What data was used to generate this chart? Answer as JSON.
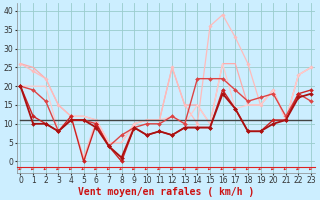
{
  "title": "Vent moyen/en rafales ( km/h )",
  "background_color": "#cceeff",
  "grid_color": "#99cccc",
  "x_ticks": [
    0,
    1,
    2,
    3,
    4,
    5,
    6,
    7,
    8,
    9,
    10,
    11,
    12,
    13,
    14,
    15,
    16,
    17,
    18,
    19,
    20,
    21,
    22,
    23
  ],
  "y_ticks": [
    0,
    5,
    10,
    15,
    20,
    25,
    30,
    35,
    40
  ],
  "ylim": [
    -3,
    42
  ],
  "xlim": [
    -0.3,
    23.3
  ],
  "series": [
    {
      "y": [
        26,
        25,
        22,
        15,
        12,
        12,
        11,
        5,
        5,
        10,
        11,
        11,
        25,
        15,
        15,
        10,
        26,
        26,
        15,
        15,
        19,
        11,
        23,
        25
      ],
      "color": "#ffaaaa",
      "lw": 0.9,
      "marker": null,
      "zorder": 2
    },
    {
      "y": [
        26,
        24,
        22,
        15,
        12,
        1,
        11,
        4,
        1,
        10,
        11,
        11,
        25,
        15,
        10,
        36,
        39,
        33,
        26,
        15,
        19,
        11,
        23,
        25
      ],
      "color": "#ffbbbb",
      "lw": 0.9,
      "marker": "D",
      "ms": 1.8,
      "zorder": 2
    },
    {
      "y": [
        20,
        20,
        20,
        8,
        12,
        12,
        11,
        5,
        5,
        10,
        11,
        11,
        12,
        10,
        15,
        10,
        26,
        14,
        15,
        15,
        19,
        11,
        23,
        25
      ],
      "color": "#ffcccc",
      "lw": 0.9,
      "marker": null,
      "zorder": 2
    },
    {
      "y": [
        20,
        19,
        16,
        8,
        11,
        11,
        10,
        4,
        7,
        9,
        10,
        10,
        12,
        10,
        22,
        22,
        22,
        19,
        16,
        17,
        18,
        12,
        18,
        16
      ],
      "color": "#dd4444",
      "lw": 1.0,
      "marker": "D",
      "ms": 2.0,
      "zorder": 3
    },
    {
      "y": [
        20,
        12,
        10,
        8,
        12,
        0,
        10,
        4,
        0,
        9,
        7,
        8,
        7,
        9,
        9,
        9,
        19,
        14,
        8,
        8,
        11,
        11,
        18,
        19
      ],
      "color": "#cc2222",
      "lw": 1.0,
      "marker": "D",
      "ms": 2.0,
      "zorder": 3
    },
    {
      "y": [
        20,
        10,
        10,
        8,
        11,
        11,
        9,
        4,
        1,
        9,
        7,
        8,
        7,
        9,
        9,
        9,
        18,
        14,
        8,
        8,
        10,
        11,
        17,
        18
      ],
      "color": "#aa1111",
      "lw": 1.3,
      "marker": "D",
      "ms": 2.0,
      "zorder": 4
    },
    {
      "y": [
        11,
        11,
        11,
        11,
        11,
        11,
        11,
        11,
        11,
        11,
        11,
        11,
        11,
        11,
        11,
        11,
        11,
        11,
        11,
        11,
        11,
        11,
        11,
        11
      ],
      "color": "#444444",
      "lw": 1.0,
      "marker": null,
      "zorder": 2
    }
  ],
  "arrow_color": "#dd2222",
  "red_line_y": -1.5,
  "tick_fontsize": 5.5,
  "xlabel_fontsize": 7.0
}
